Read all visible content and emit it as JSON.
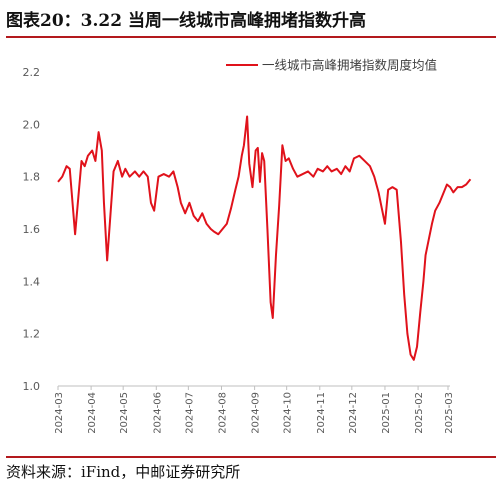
{
  "title": "图表20：3.22 当周一线城市高峰拥堵指数升高",
  "source": "资料来源：iFind，中邮证券研究所",
  "chart_data": {
    "type": "line",
    "title": "图表20：3.22 当周一线城市高峰拥堵指数升高",
    "xlabel": "",
    "ylabel": "",
    "ylim": [
      1.0,
      2.2
    ],
    "yticks": [
      "2.2",
      "2.0",
      "1.8",
      "1.6",
      "1.4",
      "1.2",
      "1.0"
    ],
    "xticks": [
      "2024-03",
      "2024-04",
      "2024-05",
      "2024-06",
      "2024-07",
      "2024-08",
      "2024-09",
      "2024-10",
      "2024-11",
      "2024-12",
      "2025-01",
      "2025-02",
      "2025-03"
    ],
    "grid": false,
    "legend": "top-right",
    "series_color": "#e0121b",
    "series": [
      {
        "name": "一线城市高峰拥堵指数周度均值",
        "points": [
          [
            "2024-03-01",
            1.78
          ],
          [
            "2024-03-05",
            1.8
          ],
          [
            "2024-03-09",
            1.84
          ],
          [
            "2024-03-12",
            1.83
          ],
          [
            "2024-03-15",
            1.68
          ],
          [
            "2024-03-17",
            1.58
          ],
          [
            "2024-03-20",
            1.72
          ],
          [
            "2024-03-23",
            1.86
          ],
          [
            "2024-03-26",
            1.84
          ],
          [
            "2024-03-29",
            1.88
          ],
          [
            "2024-04-02",
            1.9
          ],
          [
            "2024-04-05",
            1.86
          ],
          [
            "2024-04-08",
            1.97
          ],
          [
            "2024-04-11",
            1.9
          ],
          [
            "2024-04-13",
            1.7
          ],
          [
            "2024-04-16",
            1.48
          ],
          [
            "2024-04-19",
            1.65
          ],
          [
            "2024-04-22",
            1.82
          ],
          [
            "2024-04-26",
            1.86
          ],
          [
            "2024-04-30",
            1.8
          ],
          [
            "2024-05-03",
            1.83
          ],
          [
            "2024-05-07",
            1.8
          ],
          [
            "2024-05-12",
            1.82
          ],
          [
            "2024-05-16",
            1.8
          ],
          [
            "2024-05-20",
            1.82
          ],
          [
            "2024-05-24",
            1.8
          ],
          [
            "2024-05-27",
            1.7
          ],
          [
            "2024-05-30",
            1.67
          ],
          [
            "2024-06-03",
            1.8
          ],
          [
            "2024-06-08",
            1.81
          ],
          [
            "2024-06-13",
            1.8
          ],
          [
            "2024-06-17",
            1.82
          ],
          [
            "2024-06-21",
            1.76
          ],
          [
            "2024-06-24",
            1.7
          ],
          [
            "2024-06-28",
            1.66
          ],
          [
            "2024-07-02",
            1.7
          ],
          [
            "2024-07-06",
            1.65
          ],
          [
            "2024-07-10",
            1.63
          ],
          [
            "2024-07-14",
            1.66
          ],
          [
            "2024-07-18",
            1.62
          ],
          [
            "2024-07-22",
            1.6
          ],
          [
            "2024-07-25",
            1.59
          ],
          [
            "2024-07-29",
            1.58
          ],
          [
            "2024-08-02",
            1.6
          ],
          [
            "2024-08-06",
            1.62
          ],
          [
            "2024-08-10",
            1.68
          ],
          [
            "2024-08-14",
            1.75
          ],
          [
            "2024-08-17",
            1.8
          ],
          [
            "2024-08-20",
            1.88
          ],
          [
            "2024-08-22",
            1.92
          ],
          [
            "2024-08-25",
            2.03
          ],
          [
            "2024-08-27",
            1.85
          ],
          [
            "2024-08-30",
            1.76
          ],
          [
            "2024-09-02",
            1.9
          ],
          [
            "2024-09-04",
            1.91
          ],
          [
            "2024-09-06",
            1.78
          ],
          [
            "2024-09-08",
            1.89
          ],
          [
            "2024-09-10",
            1.86
          ],
          [
            "2024-09-13",
            1.6
          ],
          [
            "2024-09-16",
            1.32
          ],
          [
            "2024-09-18",
            1.26
          ],
          [
            "2024-09-21",
            1.5
          ],
          [
            "2024-09-24",
            1.69
          ],
          [
            "2024-09-27",
            1.92
          ],
          [
            "2024-09-30",
            1.86
          ],
          [
            "2024-10-03",
            1.87
          ],
          [
            "2024-10-07",
            1.83
          ],
          [
            "2024-10-11",
            1.8
          ],
          [
            "2024-10-16",
            1.81
          ],
          [
            "2024-10-21",
            1.82
          ],
          [
            "2024-10-26",
            1.8
          ],
          [
            "2024-10-30",
            1.83
          ],
          [
            "2024-11-04",
            1.82
          ],
          [
            "2024-11-08",
            1.84
          ],
          [
            "2024-11-12",
            1.82
          ],
          [
            "2024-11-17",
            1.83
          ],
          [
            "2024-11-21",
            1.81
          ],
          [
            "2024-11-25",
            1.84
          ],
          [
            "2024-11-29",
            1.82
          ],
          [
            "2024-12-03",
            1.87
          ],
          [
            "2024-12-08",
            1.88
          ],
          [
            "2024-12-13",
            1.86
          ],
          [
            "2024-12-18",
            1.84
          ],
          [
            "2024-12-22",
            1.8
          ],
          [
            "2024-12-26",
            1.74
          ],
          [
            "2024-12-29",
            1.68
          ],
          [
            "2025-01-01",
            1.62
          ],
          [
            "2025-01-04",
            1.75
          ],
          [
            "2025-01-08",
            1.76
          ],
          [
            "2025-01-12",
            1.75
          ],
          [
            "2025-01-16",
            1.55
          ],
          [
            "2025-01-19",
            1.35
          ],
          [
            "2025-01-22",
            1.2
          ],
          [
            "2025-01-25",
            1.12
          ],
          [
            "2025-01-28",
            1.1
          ],
          [
            "2025-01-31",
            1.15
          ],
          [
            "2025-02-03",
            1.28
          ],
          [
            "2025-02-06",
            1.4
          ],
          [
            "2025-02-08",
            1.5
          ],
          [
            "2025-02-11",
            1.56
          ],
          [
            "2025-02-14",
            1.62
          ],
          [
            "2025-02-17",
            1.67
          ],
          [
            "2025-02-21",
            1.7
          ],
          [
            "2025-02-25",
            1.74
          ],
          [
            "2025-02-28",
            1.77
          ],
          [
            "2025-03-03",
            1.76
          ],
          [
            "2025-03-06",
            1.74
          ],
          [
            "2025-03-10",
            1.76
          ],
          [
            "2025-03-14",
            1.76
          ],
          [
            "2025-03-18",
            1.77
          ],
          [
            "2025-03-22",
            1.79
          ]
        ]
      }
    ]
  }
}
